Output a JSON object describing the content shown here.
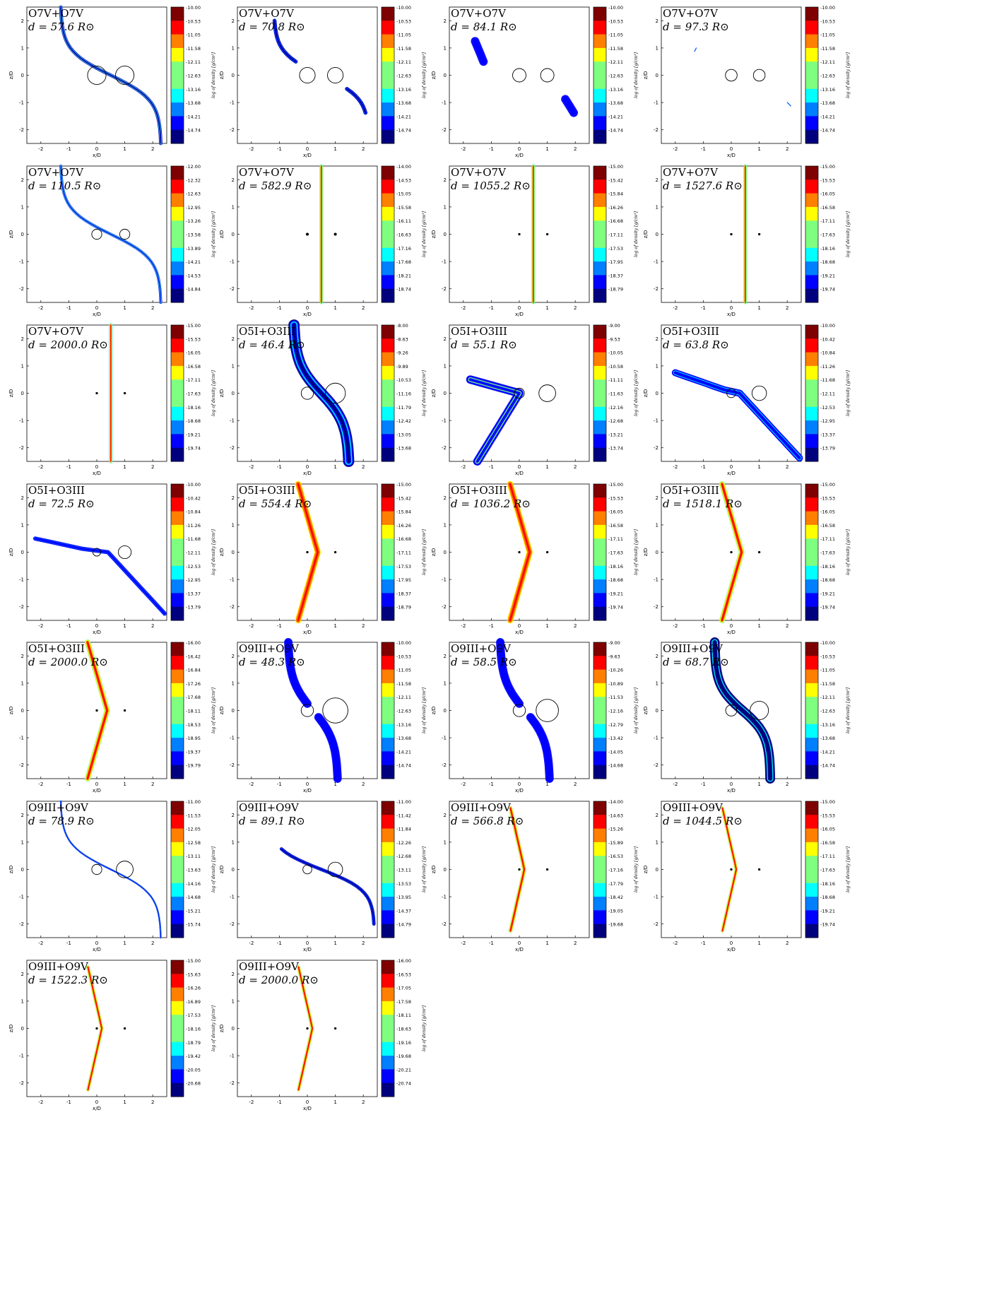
{
  "figure": {
    "xlabel": "x/D",
    "ylabel": "z/D",
    "colorbar_label": "log of density [g/cm³]",
    "distance_prefix": "d = ",
    "distance_unit": "R⊙",
    "axis_ticks": [
      -2,
      -1,
      0,
      1,
      2
    ],
    "xlim": [
      -2.5,
      2.5
    ],
    "ylim": [
      -2.5,
      2.5
    ],
    "colormap": "jet",
    "colormap_stops": [
      "#00007f",
      "#0000ff",
      "#007fff",
      "#00ffff",
      "#7fff7f",
      "#ffff00",
      "#ff7f00",
      "#ff0000",
      "#7f0000"
    ]
  },
  "chart_data": [
    {
      "type": "contour",
      "system": "O7V+O7V",
      "distance": "57.6",
      "r1": 0.33,
      "r2": 0.33,
      "cbar": [
        "-10.00",
        "-10.53",
        "-11.05",
        "-11.58",
        "-12.11",
        "-12.63",
        "-13.16",
        "-13.68",
        "-14.21",
        "-14.74"
      ],
      "shape": "sweep",
      "levels": [
        0.05,
        0.15,
        0.25,
        0.55,
        0.25,
        0.15,
        0.05
      ],
      "width": 0.12
    },
    {
      "type": "contour",
      "system": "O7V+O7V",
      "distance": "70.8",
      "r1": 0.28,
      "r2": 0.28,
      "cbar": [
        "-10.00",
        "-10.53",
        "-11.05",
        "-11.58",
        "-12.11",
        "-12.63",
        "-13.16",
        "-13.68",
        "-14.21",
        "-14.74"
      ],
      "shape": "sweep2",
      "levels": [
        0.05,
        0.12,
        0.3,
        0.12,
        0.05
      ],
      "width": 0.14
    },
    {
      "type": "contour",
      "system": "O7V+O7V",
      "distance": "84.1",
      "r1": 0.24,
      "r2": 0.24,
      "cbar": [
        "-10.00",
        "-10.53",
        "-11.05",
        "-11.58",
        "-12.11",
        "-12.63",
        "-13.16",
        "-13.68",
        "-14.21",
        "-14.74"
      ],
      "shape": "frag",
      "levels": [
        0.08,
        0.1
      ],
      "width": 0.3
    },
    {
      "type": "contour",
      "system": "O7V+O7V",
      "distance": "97.3",
      "r1": 0.21,
      "r2": 0.21,
      "cbar": [
        "-10.00",
        "-10.53",
        "-11.05",
        "-11.58",
        "-12.11",
        "-12.63",
        "-13.16",
        "-13.68",
        "-14.21",
        "-14.74"
      ],
      "shape": "thin",
      "levels": [
        0.15,
        0.2
      ],
      "width": 0.03
    },
    {
      "type": "contour",
      "system": "O7V+O7V",
      "distance": "110.5",
      "r1": 0.18,
      "r2": 0.18,
      "cbar": [
        "-12.00",
        "-12.32",
        "-12.63",
        "-12.95",
        "-13.26",
        "-13.58",
        "-13.89",
        "-14.21",
        "-14.53",
        "-14.84"
      ],
      "shape": "sweep",
      "levels": [
        0.1,
        0.3,
        0.55,
        0.3,
        0.1
      ],
      "width": 0.1
    },
    {
      "type": "contour",
      "system": "O7V+O7V",
      "distance": "582.9",
      "r1": 0.04,
      "r2": 0.04,
      "cbar": [
        "-14.00",
        "-14.53",
        "-15.05",
        "-15.58",
        "-16.11",
        "-16.63",
        "-17.16",
        "-17.68",
        "-18.21",
        "-18.74"
      ],
      "shape": "column",
      "levels": [
        0.4,
        0.5,
        0.6,
        0.7,
        0.85
      ],
      "width": 0.12
    },
    {
      "type": "contour",
      "system": "O7V+O7V",
      "distance": "1055.2",
      "r1": 0.02,
      "r2": 0.02,
      "cbar": [
        "-15.00",
        "-15.42",
        "-15.84",
        "-16.26",
        "-16.68",
        "-17.11",
        "-17.53",
        "-17.95",
        "-18.37",
        "-18.79"
      ],
      "shape": "column",
      "levels": [
        0.4,
        0.5,
        0.6,
        0.7,
        0.85
      ],
      "width": 0.12
    },
    {
      "type": "contour",
      "system": "O7V+O7V",
      "distance": "1527.6",
      "r1": 0.01,
      "r2": 0.01,
      "cbar": [
        "-15.00",
        "-15.53",
        "-16.05",
        "-16.58",
        "-17.11",
        "-17.63",
        "-18.16",
        "-18.68",
        "-19.21",
        "-19.74"
      ],
      "shape": "column",
      "levels": [
        0.4,
        0.5,
        0.6,
        0.7,
        0.85
      ],
      "width": 0.12
    },
    {
      "type": "contour",
      "system": "O7V+O7V",
      "distance": "2000.0",
      "r1": 0.01,
      "r2": 0.01,
      "cbar": [
        "-15.00",
        "-15.53",
        "-16.05",
        "-16.58",
        "-17.11",
        "-17.63",
        "-18.16",
        "-18.68",
        "-19.21",
        "-19.74"
      ],
      "shape": "column",
      "levels": [
        0.4,
        0.5,
        0.6,
        0.7,
        0.85
      ],
      "width": 0.12
    },
    {
      "type": "contour",
      "system": "O5I+O3III",
      "distance": "46.4",
      "r1": 0.22,
      "r2": 0.36,
      "cbar": [
        "-8.00",
        "-8.63",
        "-9.26",
        "-9.89",
        "-10.53",
        "-11.16",
        "-11.79",
        "-12.42",
        "-13.05",
        "-13.68"
      ],
      "shape": "cwbig",
      "levels": [
        0.02,
        0.08,
        0.4,
        0.08,
        0.02
      ],
      "width": 0.4
    },
    {
      "type": "contour",
      "system": "O5I+O3III",
      "distance": "55.1",
      "r1": 0.18,
      "r2": 0.3,
      "cbar": [
        "-9.00",
        "-9.53",
        "-10.05",
        "-10.58",
        "-11.11",
        "-11.63",
        "-12.16",
        "-12.68",
        "-13.21",
        "-13.74"
      ],
      "shape": "cwleft",
      "levels": [
        0.1,
        0.15,
        0.55,
        0.15
      ],
      "width": 0.3
    },
    {
      "type": "contour",
      "system": "O5I+O3III",
      "distance": "63.8",
      "r1": 0.16,
      "r2": 0.26,
      "cbar": [
        "-10.00",
        "-10.42",
        "-10.84",
        "-11.26",
        "-11.68",
        "-12.11",
        "-12.53",
        "-12.95",
        "-13.37",
        "-13.79"
      ],
      "shape": "cwleft2",
      "levels": [
        0.1,
        0.15,
        0.35,
        0.15,
        0.1
      ],
      "width": 0.25
    },
    {
      "type": "contour",
      "system": "O5I+O3III",
      "distance": "72.5",
      "r1": 0.14,
      "r2": 0.23,
      "cbar": [
        "-10.00",
        "-10.42",
        "-10.84",
        "-11.26",
        "-11.68",
        "-12.11",
        "-12.53",
        "-12.95",
        "-13.37",
        "-13.79"
      ],
      "shape": "cwleft3",
      "levels": [
        0.1,
        0.15,
        0.3,
        0.15,
        0.1
      ],
      "width": 0.15
    },
    {
      "type": "contour",
      "system": "O5I+O3III",
      "distance": "554.4",
      "r1": 0.03,
      "r2": 0.03,
      "cbar": [
        "-15.00",
        "-15.42",
        "-15.84",
        "-16.26",
        "-16.68",
        "-17.11",
        "-17.53",
        "-17.95",
        "-18.37",
        "-18.79"
      ],
      "shape": "vee",
      "levels": [
        0.6,
        0.7,
        0.8,
        0.9
      ],
      "width": 0.22
    },
    {
      "type": "contour",
      "system": "O5I+O3III",
      "distance": "1036.2",
      "r1": 0.015,
      "r2": 0.015,
      "cbar": [
        "-15.00",
        "-15.53",
        "-16.05",
        "-16.58",
        "-17.11",
        "-17.63",
        "-18.16",
        "-18.68",
        "-19.21",
        "-19.74"
      ],
      "shape": "vee",
      "levels": [
        0.6,
        0.7,
        0.8,
        0.9
      ],
      "width": 0.22
    },
    {
      "type": "contour",
      "system": "O5I+O3III",
      "distance": "1518.1",
      "r1": 0.01,
      "r2": 0.01,
      "cbar": [
        "-15.00",
        "-15.53",
        "-16.05",
        "-16.58",
        "-17.11",
        "-17.63",
        "-18.16",
        "-18.68",
        "-19.21",
        "-19.74"
      ],
      "shape": "vee",
      "levels": [
        0.55,
        0.65,
        0.75,
        0.9
      ],
      "width": 0.2
    },
    {
      "type": "contour",
      "system": "O5I+O3III",
      "distance": "2000.0",
      "r1": 0.01,
      "r2": 0.01,
      "cbar": [
        "-16.00",
        "-16.42",
        "-16.84",
        "-17.26",
        "-17.68",
        "-18.11",
        "-18.53",
        "-18.95",
        "-19.37",
        "-19.79"
      ],
      "shape": "vee",
      "levels": [
        0.55,
        0.65,
        0.75,
        0.9
      ],
      "width": 0.2
    },
    {
      "type": "contour",
      "system": "O9III+O9V",
      "distance": "48.3",
      "r1": 0.22,
      "r2": 0.45,
      "cbar": [
        "-10.00",
        "-10.53",
        "-11.05",
        "-11.58",
        "-12.11",
        "-12.63",
        "-13.16",
        "-13.68",
        "-14.21",
        "-14.74"
      ],
      "shape": "o9a",
      "levels": [
        0.1,
        0.15,
        0.1
      ],
      "width": 0.3
    },
    {
      "type": "contour",
      "system": "O9III+O9V",
      "distance": "58.5",
      "r1": 0.22,
      "r2": 0.4,
      "cbar": [
        "-9.00",
        "-9.63",
        "-10.26",
        "-10.89",
        "-11.53",
        "-12.16",
        "-12.79",
        "-13.42",
        "-14.05",
        "-14.68"
      ],
      "shape": "o9a",
      "levels": [
        0.1,
        0.15,
        0.1
      ],
      "width": 0.3
    },
    {
      "type": "contour",
      "system": "O9III+O9V",
      "distance": "68.7",
      "r1": 0.2,
      "r2": 0.33,
      "cbar": [
        "-10.00",
        "-10.53",
        "-11.05",
        "-11.58",
        "-12.11",
        "-12.63",
        "-13.16",
        "-13.68",
        "-14.21",
        "-14.74"
      ],
      "shape": "o9b",
      "levels": [
        0.02,
        0.05,
        0.35,
        0.05,
        0.02
      ],
      "width": 0.35
    },
    {
      "type": "contour",
      "system": "O9III+O9V",
      "distance": "78.9",
      "r1": 0.18,
      "r2": 0.3,
      "cbar": [
        "-11.00",
        "-11.53",
        "-12.05",
        "-12.58",
        "-13.11",
        "-13.63",
        "-14.16",
        "-14.68",
        "-15.21",
        "-15.74"
      ],
      "shape": "sweep",
      "levels": [
        0.1,
        0.2,
        0.5,
        0.2,
        0.1
      ],
      "width": 0.06
    },
    {
      "type": "contour",
      "system": "O9III+O9V",
      "distance": "89.1",
      "r1": 0.16,
      "r2": 0.26,
      "cbar": [
        "-11.00",
        "-11.42",
        "-11.84",
        "-12.26",
        "-12.68",
        "-13.11",
        "-13.53",
        "-13.95",
        "-14.37",
        "-14.79"
      ],
      "shape": "sweep3",
      "levels": [
        0.05,
        0.15,
        0.3,
        0.15,
        0.05
      ],
      "width": 0.12
    },
    {
      "type": "contour",
      "system": "O9III+O9V",
      "distance": "566.8",
      "r1": 0.03,
      "r2": 0.03,
      "cbar": [
        "-14.00",
        "-14.63",
        "-15.26",
        "-15.89",
        "-16.53",
        "-17.16",
        "-17.79",
        "-18.42",
        "-19.05",
        "-19.68"
      ],
      "shape": "veesmall",
      "levels": [
        0.55,
        0.65,
        0.8,
        0.9
      ],
      "width": 0.14
    },
    {
      "type": "contour",
      "system": "O9III+O9V",
      "distance": "1044.5",
      "r1": 0.01,
      "r2": 0.01,
      "cbar": [
        "-15.00",
        "-15.53",
        "-16.05",
        "-16.58",
        "-17.11",
        "-17.63",
        "-18.16",
        "-18.68",
        "-19.21",
        "-19.74"
      ],
      "shape": "veesmall",
      "levels": [
        0.55,
        0.65,
        0.8,
        0.9
      ],
      "width": 0.12
    },
    {
      "type": "contour",
      "system": "O9III+O9V",
      "distance": "1522.3",
      "r1": 0.01,
      "r2": 0.01,
      "cbar": [
        "-15.00",
        "-15.63",
        "-16.26",
        "-16.89",
        "-17.53",
        "-18.16",
        "-18.79",
        "-19.42",
        "-20.05",
        "-20.68"
      ],
      "shape": "veesmall",
      "levels": [
        0.55,
        0.65,
        0.8,
        0.9
      ],
      "width": 0.12
    },
    {
      "type": "contour",
      "system": "O9III+O9V",
      "distance": "2000.0",
      "r1": 0.01,
      "r2": 0.01,
      "cbar": [
        "-16.00",
        "-16.53",
        "-17.05",
        "-17.58",
        "-18.11",
        "-18.63",
        "-19.16",
        "-19.68",
        "-20.21",
        "-20.74"
      ],
      "shape": "veesmall",
      "levels": [
        0.55,
        0.65,
        0.8,
        0.9
      ],
      "width": 0.12
    }
  ]
}
